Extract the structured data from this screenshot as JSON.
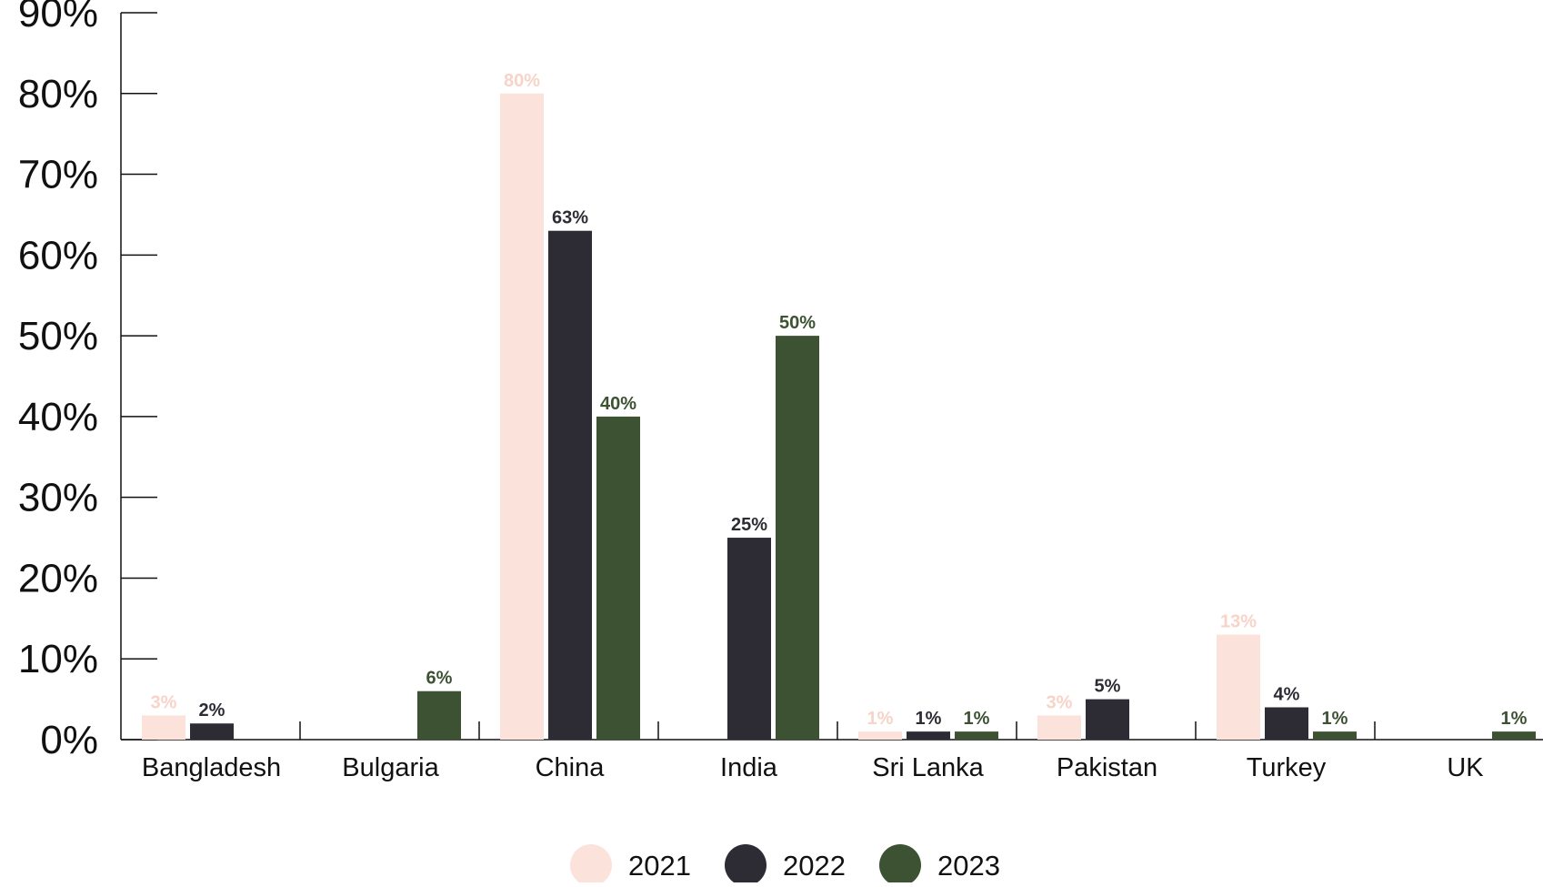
{
  "chart_data": {
    "type": "bar",
    "categories": [
      "Bangladesh",
      "Bulgaria",
      "China",
      "India",
      "Sri Lanka",
      "Pakistan",
      "Turkey",
      "UK"
    ],
    "series": [
      {
        "name": "2021",
        "color": "#fbe3dc",
        "label_color": "#f7d3c8",
        "values": [
          3,
          0,
          80,
          0,
          1,
          3,
          13,
          0
        ],
        "labels": [
          "3%",
          "",
          "80%",
          "",
          "1%",
          "3%",
          "13%",
          ""
        ]
      },
      {
        "name": "2022",
        "color": "#2d2c35",
        "label_color": "#2d2c35",
        "values": [
          2,
          0,
          63,
          25,
          1,
          5,
          4,
          0
        ],
        "labels": [
          "2%",
          "",
          "63%",
          "25%",
          "1%",
          "5%",
          "4%",
          ""
        ]
      },
      {
        "name": "2023",
        "color": "#3c5232",
        "label_color": "#3c5232",
        "values": [
          0,
          6,
          40,
          50,
          1,
          0,
          1,
          1
        ],
        "labels": [
          "",
          "6%",
          "40%",
          "50%",
          "1%",
          "",
          "1%",
          "1%"
        ]
      }
    ],
    "title": "",
    "xlabel": "",
    "ylabel": "",
    "ylim": [
      0,
      90
    ],
    "yticks": [
      0,
      10,
      20,
      30,
      40,
      50,
      60,
      70,
      80,
      90
    ],
    "ytick_labels": [
      "0%",
      "10%",
      "20%",
      "30%",
      "40%",
      "50%",
      "60%",
      "70%",
      "80%",
      "90%"
    ],
    "grid": false,
    "legend_position": "bottom-center"
  }
}
